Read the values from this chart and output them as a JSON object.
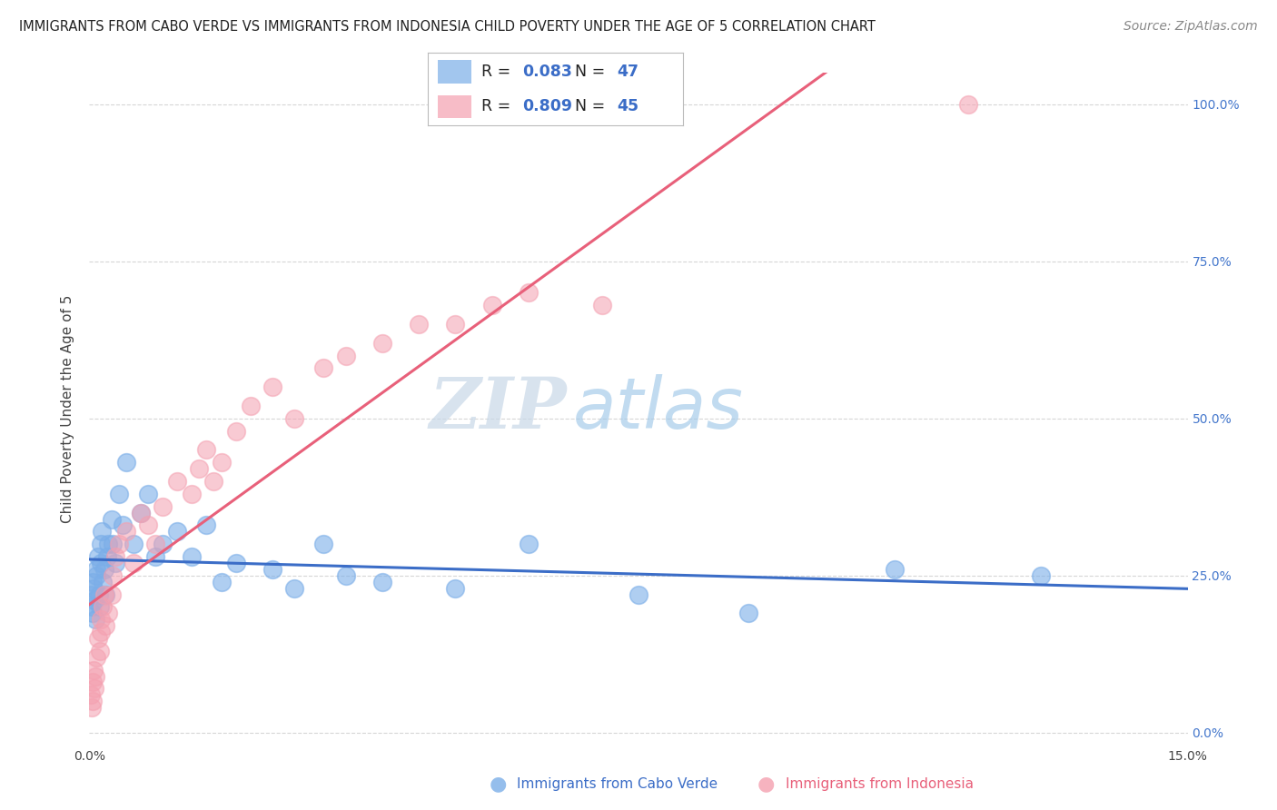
{
  "title": "IMMIGRANTS FROM CABO VERDE VS IMMIGRANTS FROM INDONESIA CHILD POVERTY UNDER THE AGE OF 5 CORRELATION CHART",
  "source": "Source: ZipAtlas.com",
  "ylabel": "Child Poverty Under the Age of 5",
  "xlabel_cabo": "Immigrants from Cabo Verde",
  "xlabel_indonesia": "Immigrants from Indonesia",
  "cabo_verde_R": 0.083,
  "cabo_verde_N": 47,
  "indonesia_R": 0.809,
  "indonesia_N": 45,
  "cabo_verde_color": "#7baee8",
  "indonesia_color": "#f4a0b0",
  "cabo_verde_line_color": "#3b6dc7",
  "indonesia_line_color": "#e8607a",
  "xmin": 0.0,
  "xmax": 0.15,
  "ymin": -0.02,
  "ymax": 1.05,
  "yticks": [
    0.0,
    0.25,
    0.5,
    0.75,
    1.0
  ],
  "ytick_labels": [
    "0.0%",
    "25.0%",
    "50.0%",
    "75.0%",
    "100.0%"
  ],
  "xticks": [
    0.0,
    0.15
  ],
  "xtick_labels": [
    "0.0%",
    "15.0%"
  ],
  "watermark_zip": "ZIP",
  "watermark_atlas": "atlas",
  "cabo_verde_x": [
    0.0002,
    0.0003,
    0.0004,
    0.0005,
    0.0006,
    0.0007,
    0.0008,
    0.0009,
    0.001,
    0.0012,
    0.0013,
    0.0014,
    0.0015,
    0.0016,
    0.0017,
    0.0018,
    0.002,
    0.0022,
    0.0024,
    0.0026,
    0.003,
    0.0032,
    0.0035,
    0.004,
    0.0045,
    0.005,
    0.006,
    0.007,
    0.008,
    0.009,
    0.01,
    0.012,
    0.014,
    0.016,
    0.018,
    0.02,
    0.025,
    0.028,
    0.032,
    0.035,
    0.04,
    0.05,
    0.06,
    0.075,
    0.09,
    0.11,
    0.13
  ],
  "cabo_verde_y": [
    0.22,
    0.2,
    0.24,
    0.19,
    0.23,
    0.21,
    0.18,
    0.25,
    0.26,
    0.28,
    0.22,
    0.2,
    0.3,
    0.27,
    0.32,
    0.24,
    0.26,
    0.22,
    0.28,
    0.3,
    0.34,
    0.3,
    0.27,
    0.38,
    0.33,
    0.43,
    0.3,
    0.35,
    0.38,
    0.28,
    0.3,
    0.32,
    0.28,
    0.33,
    0.24,
    0.27,
    0.26,
    0.23,
    0.3,
    0.25,
    0.24,
    0.23,
    0.3,
    0.22,
    0.19,
    0.26,
    0.25
  ],
  "indonesia_x": [
    0.0002,
    0.0003,
    0.0004,
    0.0005,
    0.0006,
    0.0007,
    0.0008,
    0.001,
    0.0012,
    0.0014,
    0.0015,
    0.0016,
    0.0018,
    0.002,
    0.0022,
    0.0025,
    0.003,
    0.0032,
    0.0035,
    0.004,
    0.005,
    0.006,
    0.007,
    0.008,
    0.009,
    0.01,
    0.012,
    0.014,
    0.015,
    0.016,
    0.017,
    0.018,
    0.02,
    0.022,
    0.025,
    0.028,
    0.032,
    0.035,
    0.04,
    0.045,
    0.05,
    0.055,
    0.06,
    0.07,
    0.12
  ],
  "indonesia_y": [
    0.06,
    0.04,
    0.08,
    0.05,
    0.1,
    0.07,
    0.09,
    0.12,
    0.15,
    0.13,
    0.18,
    0.16,
    0.2,
    0.22,
    0.17,
    0.19,
    0.22,
    0.25,
    0.28,
    0.3,
    0.32,
    0.27,
    0.35,
    0.33,
    0.3,
    0.36,
    0.4,
    0.38,
    0.42,
    0.45,
    0.4,
    0.43,
    0.48,
    0.52,
    0.55,
    0.5,
    0.58,
    0.6,
    0.62,
    0.65,
    0.65,
    0.68,
    0.7,
    0.68,
    1.0
  ],
  "title_fontsize": 10.5,
  "axis_label_fontsize": 11,
  "tick_fontsize": 10,
  "legend_fontsize": 13,
  "watermark_fontsize_zip": 56,
  "watermark_fontsize_atlas": 56,
  "source_fontsize": 10,
  "background_color": "#ffffff",
  "grid_color": "#cccccc",
  "right_ytick_color": "#4477cc"
}
